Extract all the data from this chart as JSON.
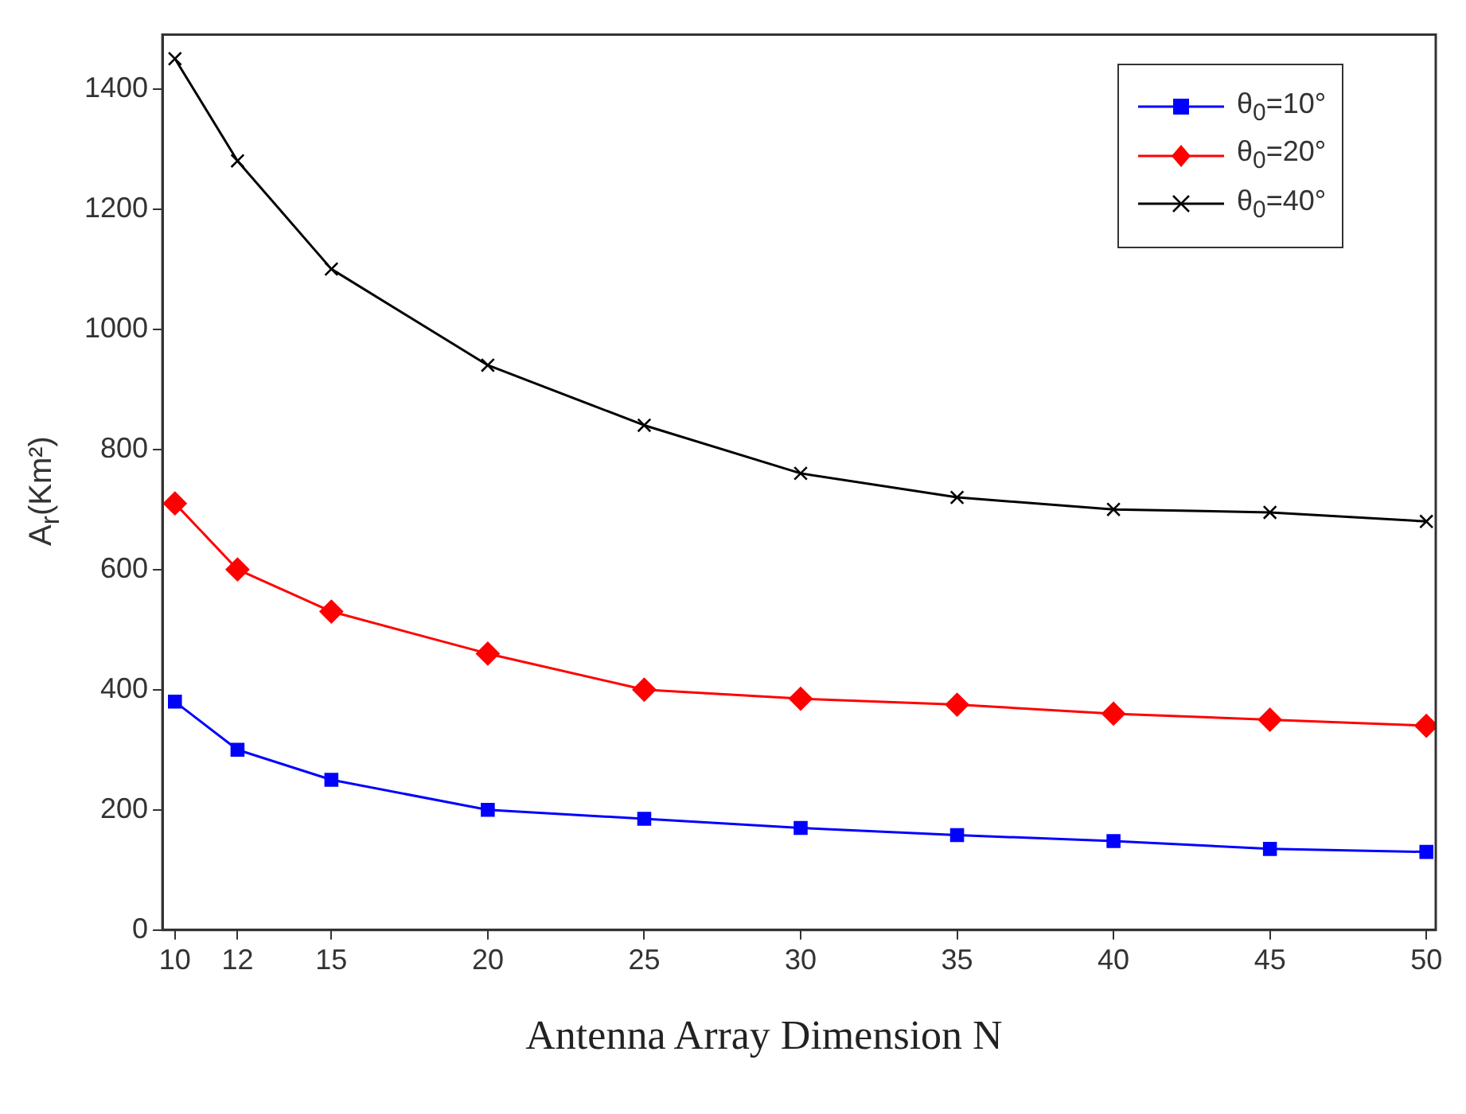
{
  "chart_data": {
    "type": "line",
    "xlabel": "Antenna Array Dimension N",
    "ylabel": "A$_{r}$(Km²)",
    "x": [
      10,
      12,
      15,
      20,
      25,
      30,
      35,
      40,
      45,
      50
    ],
    "xlim": [
      9.6,
      50.3
    ],
    "xticks": [
      10,
      12,
      15,
      20,
      25,
      30,
      35,
      40,
      45,
      50
    ],
    "ylim": [
      0,
      1490
    ],
    "yticks": [
      0,
      200,
      400,
      600,
      800,
      1000,
      1200,
      1400
    ],
    "series": [
      {
        "name": "θ$_{0}$=10°",
        "color": "#0000ff",
        "marker": "square",
        "values": [
          380,
          300,
          250,
          200,
          185,
          170,
          158,
          148,
          135,
          130
        ]
      },
      {
        "name": "θ$_{0}$=20°",
        "color": "#ff0000",
        "marker": "diamond",
        "values": [
          710,
          600,
          530,
          460,
          400,
          385,
          375,
          360,
          350,
          340
        ]
      },
      {
        "name": "θ$_{0}$=40°",
        "color": "#000000",
        "marker": "cross",
        "values": [
          1450,
          1280,
          1100,
          940,
          840,
          760,
          720,
          700,
          695,
          680
        ]
      }
    ],
    "grid": false,
    "legend": "top right",
    "line_style": "solid"
  }
}
